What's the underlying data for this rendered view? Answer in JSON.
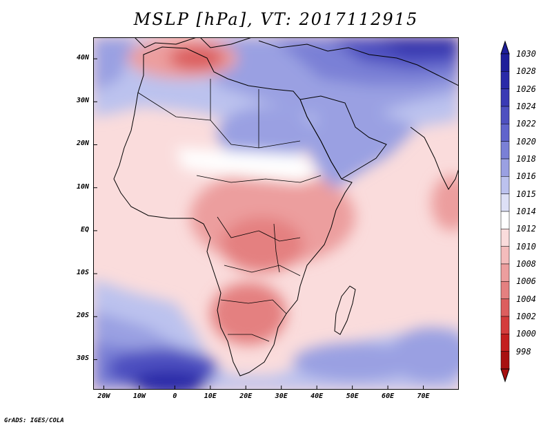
{
  "title": "MSLP [hPa], VT: 2017112915",
  "credit": "GrADS: IGES/COLA",
  "map": {
    "lon_range": [
      -23,
      80
    ],
    "lat_range": [
      -37,
      45
    ],
    "lat_ticks": [
      {
        "lat": 40,
        "label": "40N"
      },
      {
        "lat": 30,
        "label": "30N"
      },
      {
        "lat": 20,
        "label": "20N"
      },
      {
        "lat": 10,
        "label": "10N"
      },
      {
        "lat": 0,
        "label": "EQ"
      },
      {
        "lat": -10,
        "label": "10S"
      },
      {
        "lat": -20,
        "label": "20S"
      },
      {
        "lat": -30,
        "label": "30S"
      }
    ],
    "lon_ticks": [
      {
        "lon": -20,
        "label": "20W"
      },
      {
        "lon": -10,
        "label": "10W"
      },
      {
        "lon": 0,
        "label": "0"
      },
      {
        "lon": 10,
        "label": "10E"
      },
      {
        "lon": 20,
        "label": "20E"
      },
      {
        "lon": 30,
        "label": "30E"
      },
      {
        "lon": 40,
        "label": "40E"
      },
      {
        "lon": 50,
        "label": "50E"
      },
      {
        "lon": 60,
        "label": "60E"
      },
      {
        "lon": 70,
        "label": "70E"
      }
    ]
  },
  "colorbar": {
    "levels": [
      "1030",
      "1028",
      "1026",
      "1024",
      "1022",
      "1020",
      "1018",
      "1016",
      "1015",
      "1014",
      "1012",
      "1010",
      "1008",
      "1006",
      "1004",
      "1002",
      "1000",
      "998"
    ],
    "colors": [
      "#1e1e9a",
      "#2a2aa8",
      "#3a3ab4",
      "#4e50c0",
      "#6064cc",
      "#7a80d6",
      "#9aa0e2",
      "#bcc2ee",
      "#dde0f6",
      "#ffffff",
      "#fadcdc",
      "#f4bcbc",
      "#ec9e9e",
      "#e48080",
      "#dc5e5e",
      "#d43c3c",
      "#c41e1e",
      "#a81010"
    ]
  }
}
